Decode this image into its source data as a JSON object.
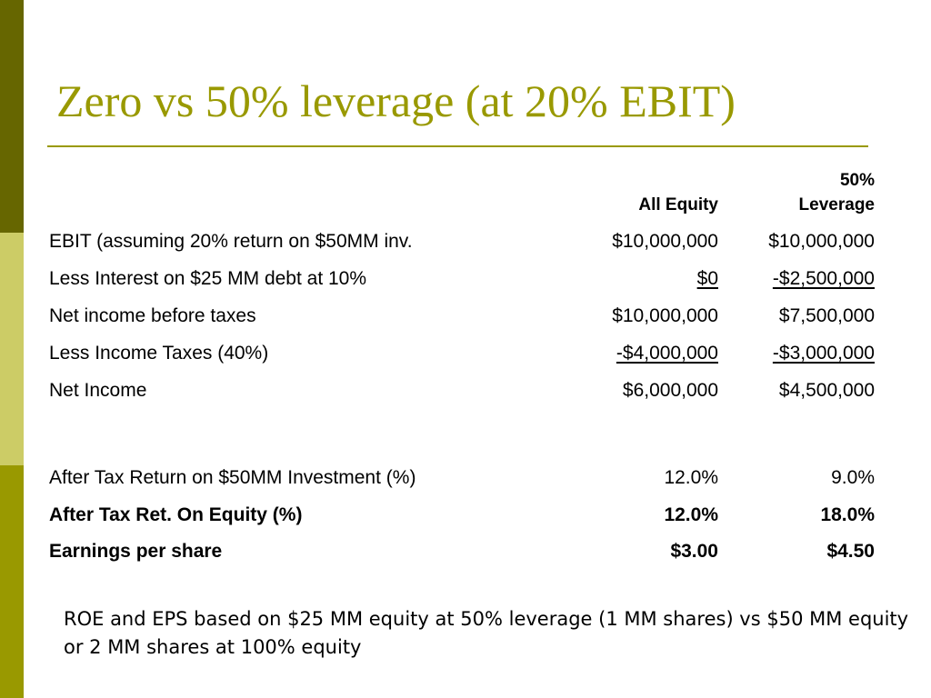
{
  "title": "Zero vs 50% leverage (at 20% EBIT)",
  "columns": {
    "all_equity": "All Equity",
    "leverage_line1": "50%",
    "leverage_line2": "Leverage"
  },
  "rows": [
    {
      "label": "EBIT (assuming 20% return on $50MM inv.",
      "all_equity": "$10,000,000",
      "leverage": "$10,000,000"
    },
    {
      "label": "Less Interest on $25 MM debt at 10%",
      "all_equity": "$0",
      "leverage": "-$2,500,000"
    },
    {
      "label": "Net income before taxes",
      "all_equity": "$10,000,000",
      "leverage": "$7,500,000"
    },
    {
      "label": "Less Income Taxes (40%)",
      "all_equity": "-$4,000,000",
      "leverage": "-$3,000,000"
    },
    {
      "label": "Net Income",
      "all_equity": "$6,000,000",
      "leverage": "$4,500,000"
    },
    {
      "label": "After Tax Return on $50MM Investment (%)",
      "all_equity": "12.0%",
      "leverage": "9.0%"
    },
    {
      "label": "After Tax Ret. On Equity (%)",
      "all_equity": "12.0%",
      "leverage": "18.0%"
    },
    {
      "label": "Earnings per share",
      "all_equity": "$3.00",
      "leverage": "$4.50"
    }
  ],
  "note": "ROE and EPS based on $25 MM equity at 50% leverage (1 MM shares) vs $50 MM equity or 2 MM shares at 100% equity",
  "colors": {
    "accent": "#999900",
    "bar_dark": "#666600",
    "bar_light": "#cccc66"
  }
}
